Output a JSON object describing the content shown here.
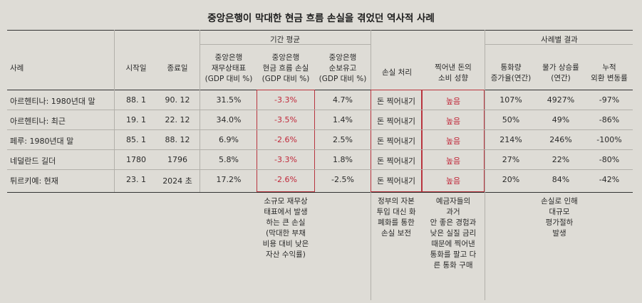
{
  "title": "중앙은행이 막대한 현금 흐름 손실을 겪었던 역사적 사례",
  "group_headers": {
    "period_avg": "기간 평균",
    "results": "사례별 결과"
  },
  "headers": {
    "case": "사례",
    "start": "시작일",
    "end": "종료일",
    "balance": [
      "중앙은행",
      "재무상태표",
      "(GDP 대비 %)"
    ],
    "cashflow": [
      "중앙은행",
      "현금 흐름 손실",
      "(GDP 대비 %)"
    ],
    "reserves": [
      "중앙은행",
      "순보유고",
      "(GDP 대비 %)"
    ],
    "loss_handling": "손실 처리",
    "consumption": [
      "찍어낸 돈의",
      "소비 성향"
    ],
    "money_growth": [
      "통화량",
      "증가율(연간)"
    ],
    "inflation": [
      "물가 상승률",
      "(연간)"
    ],
    "fx_change": [
      "누적",
      "외환 변동률"
    ]
  },
  "rows": [
    {
      "case": "아르헨티나: 1980년대 말",
      "start": "88. 1",
      "end": "90. 12",
      "balance": "31.5%",
      "cashflow": "-3.3%",
      "reserves": "4.7%",
      "loss_handling": "돈 찍어내기",
      "consumption": "높음",
      "money_growth": "107%",
      "inflation": "4927%",
      "fx_change": "-97%"
    },
    {
      "case": "아르헨티나: 최근",
      "start": "19. 1",
      "end": "22. 12",
      "balance": "34.0%",
      "cashflow": "-3.5%",
      "reserves": "1.4%",
      "loss_handling": "돈 찍어내기",
      "consumption": "높음",
      "money_growth": "50%",
      "inflation": "49%",
      "fx_change": "-86%"
    },
    {
      "case": "페루: 1980년대 말",
      "start": "85. 1",
      "end": "88. 12",
      "balance": "6.9%",
      "cashflow": "-2.6%",
      "reserves": "2.5%",
      "loss_handling": "돈 찍어내기",
      "consumption": "높음",
      "money_growth": "214%",
      "inflation": "246%",
      "fx_change": "-100%"
    },
    {
      "case": "네덜란드 길더",
      "start": "1780",
      "end": "1796",
      "balance": "5.8%",
      "cashflow": "-3.3%",
      "reserves": "1.8%",
      "loss_handling": "돈 찍어내기",
      "consumption": "높음",
      "money_growth": "27%",
      "inflation": "22%",
      "fx_change": "-80%"
    },
    {
      "case": "튀르키예: 현재",
      "start": "23. 1",
      "end": "2024 초",
      "balance": "17.2%",
      "cashflow": "-2.6%",
      "reserves": "-2.5%",
      "loss_handling": "돈 찍어내기",
      "consumption": "높음",
      "money_growth": "20%",
      "inflation": "84%",
      "fx_change": "-42%"
    }
  ],
  "notes": {
    "cashflow": [
      "소규모 재무상",
      "태표에서 발생",
      "하는 큰 손실",
      "(막대한 부채",
      "비용 대비 낮은",
      "자산 수익률)"
    ],
    "loss_handling": [
      "정부의 자본",
      "투입 대신 화",
      "폐화를 통한",
      "손실 보전"
    ],
    "consumption": [
      "예금자들의",
      "과거",
      "안 좋은 경험과",
      "낮은 실질 금리",
      "때문에 찍어낸",
      "통화를 팔고 다",
      "른 통화 구매"
    ],
    "results": [
      "손실로 인해",
      "대규모",
      "평가절하",
      "발생"
    ]
  },
  "colors": {
    "accent_red": "#c0283a",
    "background": "#dedcd6"
  }
}
